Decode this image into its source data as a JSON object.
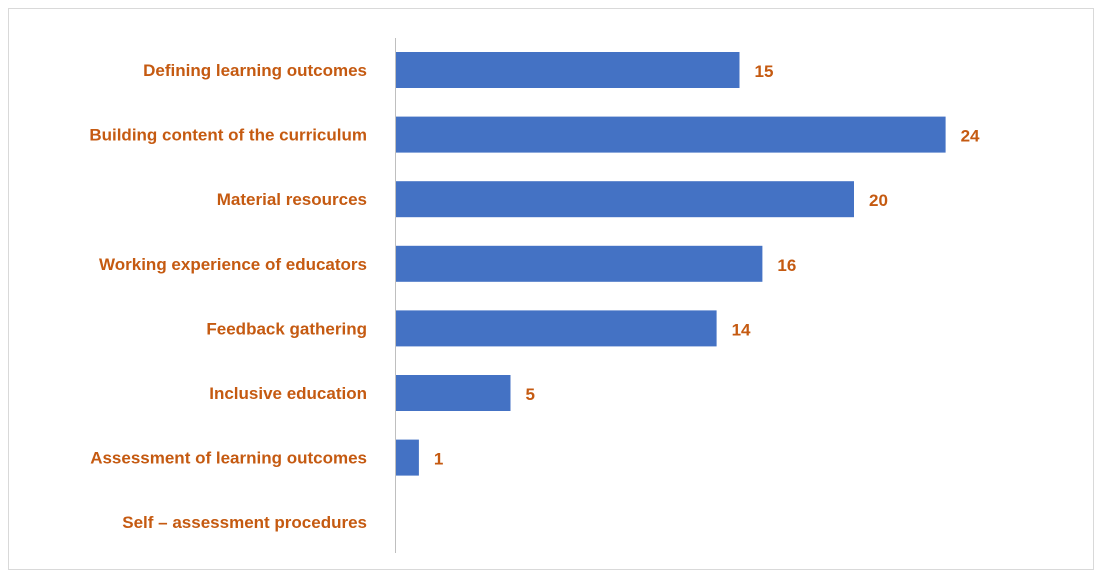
{
  "chart_data": {
    "type": "bar",
    "orientation": "horizontal",
    "categories": [
      "Defining learning outcomes",
      "Building content of the curriculum",
      "Material resources",
      "Working experience of educators",
      "Feedback gathering",
      "Inclusive education",
      "Assessment of learning outcomes",
      "Self – assessment procedures"
    ],
    "values": [
      15,
      24,
      20,
      16,
      14,
      5,
      1,
      null
    ],
    "value_labels": [
      "15",
      "24",
      "20",
      "16",
      "14",
      "5",
      "1",
      ""
    ],
    "title": "",
    "xlabel": "",
    "ylabel": "",
    "xlim": [
      0,
      24
    ],
    "grid": false,
    "legend": "none",
    "colors": {
      "bar": "#4472c4",
      "label": "#c55a11",
      "axis": "#bfbfbf",
      "frame": "#d9d9d9"
    }
  }
}
